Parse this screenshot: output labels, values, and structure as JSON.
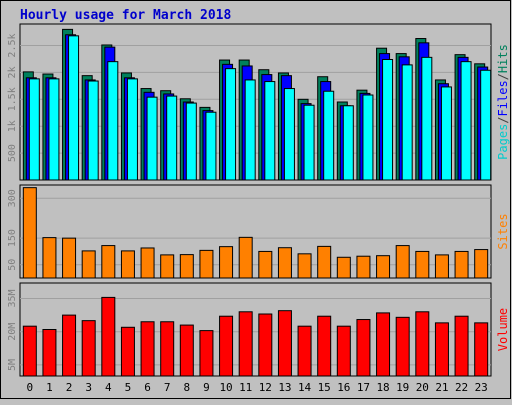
{
  "title": "Hourly usage for March 2018",
  "colors": {
    "background": "#c0c0c0",
    "plot_bg": "#c0c0c0",
    "hits": "#00805c",
    "files": "#0000ff",
    "pages": "#00ffff",
    "sites": "#ff8000",
    "volume": "#ff0000",
    "title": "#0000cc",
    "axis": "#808080"
  },
  "chart_data": [
    {
      "type": "bar",
      "name": "hits-files-pages",
      "categories": [
        "0",
        "1",
        "2",
        "3",
        "4",
        "5",
        "6",
        "7",
        "8",
        "9",
        "10",
        "11",
        "12",
        "13",
        "14",
        "15",
        "16",
        "17",
        "18",
        "19",
        "20",
        "21",
        "22",
        "23"
      ],
      "ylim": [
        0,
        2900
      ],
      "yticks": [
        {
          "value": 500,
          "label": "500"
        },
        {
          "value": 1000,
          "label": "1k"
        },
        {
          "value": 1500,
          "label": "1.5k"
        },
        {
          "value": 2000,
          "label": "2k"
        },
        {
          "value": 2500,
          "label": "2.5k"
        }
      ],
      "ylabel_parts": [
        {
          "text": "Pages",
          "color": "#00cccc"
        },
        {
          "text": "/",
          "color": "#404040"
        },
        {
          "text": "Files",
          "color": "#0000ff"
        },
        {
          "text": "/",
          "color": "#404040"
        },
        {
          "text": "Hits",
          "color": "#00805c"
        }
      ],
      "series": [
        {
          "name": "Hits",
          "values": [
            2010,
            1970,
            2800,
            1940,
            2510,
            1990,
            1700,
            1660,
            1510,
            1350,
            2230,
            2230,
            2050,
            1990,
            1500,
            1920,
            1450,
            1670,
            2450,
            2350,
            2630,
            1860,
            2330,
            2160
          ]
        },
        {
          "name": "Files",
          "values": [
            1900,
            1900,
            2700,
            1860,
            2470,
            1900,
            1630,
            1600,
            1450,
            1290,
            2150,
            2120,
            1960,
            1940,
            1420,
            1830,
            1380,
            1610,
            2350,
            2290,
            2550,
            1790,
            2280,
            2100
          ]
        },
        {
          "name": "Pages",
          "values": [
            1880,
            1880,
            2680,
            1840,
            2200,
            1880,
            1540,
            1560,
            1430,
            1260,
            2070,
            1860,
            1830,
            1700,
            1390,
            1650,
            1380,
            1580,
            2240,
            2140,
            2280,
            1730,
            2200,
            2040
          ]
        }
      ]
    },
    {
      "type": "bar",
      "name": "sites",
      "categories": [
        "0",
        "1",
        "2",
        "3",
        "4",
        "5",
        "6",
        "7",
        "8",
        "9",
        "10",
        "11",
        "12",
        "13",
        "14",
        "15",
        "16",
        "17",
        "18",
        "19",
        "20",
        "21",
        "22",
        "23"
      ],
      "ylim": [
        0,
        350
      ],
      "yticks": [
        {
          "value": 50,
          "label": "50"
        },
        {
          "value": 150,
          "label": "150"
        },
        {
          "value": 300,
          "label": "300"
        }
      ],
      "ylabel_parts": [
        {
          "text": "Sites",
          "color": "#ff8000"
        }
      ],
      "series": [
        {
          "name": "Sites",
          "values": [
            340,
            152,
            150,
            102,
            122,
            102,
            113,
            87,
            88,
            104,
            118,
            153,
            100,
            114,
            91,
            119,
            78,
            82,
            84,
            122,
            100,
            87,
            100,
            107
          ]
        }
      ]
    },
    {
      "type": "bar",
      "name": "volume",
      "categories": [
        "0",
        "1",
        "2",
        "3",
        "4",
        "5",
        "6",
        "7",
        "8",
        "9",
        "10",
        "11",
        "12",
        "13",
        "14",
        "15",
        "16",
        "17",
        "18",
        "19",
        "20",
        "21",
        "22",
        "23"
      ],
      "ylim": [
        0,
        42
      ],
      "yticks": [
        {
          "value": 5,
          "label": "5M"
        },
        {
          "value": 20,
          "label": "20M"
        },
        {
          "value": 35,
          "label": "35M"
        }
      ],
      "ylabel_parts": [
        {
          "text": "Volume",
          "color": "#ff0000"
        }
      ],
      "series": [
        {
          "name": "Volume",
          "values": [
            22.5,
            21.0,
            27.5,
            25.0,
            35.5,
            22.0,
            24.5,
            24.5,
            23.0,
            20.5,
            27.0,
            29.0,
            28.0,
            29.5,
            22.5,
            27.0,
            22.5,
            25.5,
            28.5,
            26.5,
            29.0,
            24.0,
            27.0,
            24.0
          ]
        }
      ]
    }
  ]
}
